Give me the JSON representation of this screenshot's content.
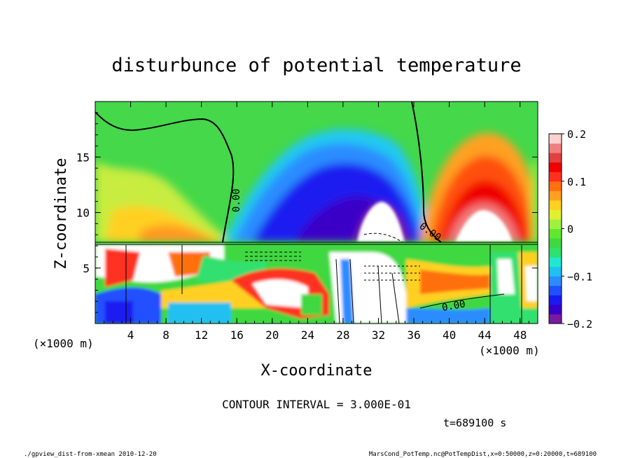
{
  "chart_data": {
    "type": "heatmap",
    "title": "disturbunce of potential temperature",
    "xlabel": "X-coordinate",
    "ylabel": "Z-coordinate",
    "x_unit_left": "(×1000 m)",
    "x_unit_right": "(×1000 m)",
    "xlim": [
      0,
      50
    ],
    "ylim": [
      0,
      20
    ],
    "x_ticks": [
      4,
      8,
      12,
      16,
      20,
      24,
      28,
      32,
      36,
      40,
      44,
      48
    ],
    "y_ticks": [
      5,
      10,
      15
    ],
    "colorbar": {
      "range": [
        -0.2,
        0.2
      ],
      "tick_values": [
        0.2,
        0.1,
        0,
        -0.1,
        -0.2
      ],
      "tick_labels": [
        "0.2",
        "0.1",
        "0",
        "−0.1",
        "−0.2"
      ],
      "colors": [
        "#7a1aa0",
        "#3a00c8",
        "#1a1af0",
        "#2050ff",
        "#2c8cff",
        "#20c0f0",
        "#20e8d0",
        "#30e070",
        "#40d840",
        "#60e830",
        "#a0f040",
        "#e0f030",
        "#ffd020",
        "#ffa020",
        "#ff7010",
        "#ff3020",
        "#f00000",
        "#e04040",
        "#f08080",
        "#ffd0d0"
      ]
    },
    "contour_labels": [
      "0.00",
      "0.00",
      "0.00"
    ],
    "contour_interval_text": "CONTOUR INTERVAL = 3.000E-01",
    "time_text": "t=689100 s"
  },
  "footer": {
    "left": "./gpview_dist-from-xmean  2010-12-20",
    "right": "MarsCond_PotTemp.nc@PotTempDist,x=0:50000,z=0:20000,t=689100"
  },
  "colors": {
    "background": "#ffffff",
    "frame": "#000000"
  }
}
